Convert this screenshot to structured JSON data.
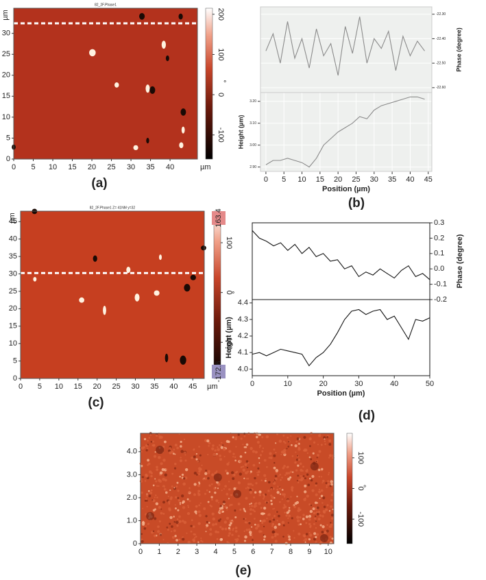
{
  "panel_labels": [
    "(a)",
    "(b)",
    "(c)",
    "(d)",
    "(e)"
  ],
  "chart_data": [
    {
      "type": "image",
      "title": "82_2F.Phase1",
      "color": "#b3321d",
      "xlim": [
        0,
        47
      ],
      "xticks": [
        0,
        5,
        10,
        15,
        20,
        25,
        30,
        35,
        40
      ],
      "ylim": [
        0,
        36
      ],
      "yticks": [
        0,
        5,
        10,
        15,
        20,
        25,
        30
      ],
      "xlabel": "µm",
      "ylabel": "µm",
      "colorbar": {
        "lim": [
          -160,
          215
        ],
        "ticks": [
          200,
          100,
          0,
          -100
        ],
        "label": "°"
      }
    },
    {
      "type": "line",
      "grid": true,
      "x": [
        0,
        2,
        4,
        6,
        8,
        10,
        12,
        14,
        16,
        18,
        20,
        22,
        24,
        26,
        28,
        30,
        32,
        34,
        36,
        38,
        40,
        42,
        44
      ],
      "series": [
        {
          "color": "#8a8a8a",
          "axis": "y2",
          "values": [
            -22.45,
            -22.38,
            -22.5,
            -22.33,
            -22.48,
            -22.4,
            -22.52,
            -22.36,
            -22.47,
            -22.42,
            -22.55,
            -22.35,
            -22.46,
            -22.31,
            -22.5,
            -22.4,
            -22.44,
            -22.37,
            -22.53,
            -22.39,
            -22.47,
            -22.41,
            -22.45
          ]
        }
      ],
      "xlim": [
        -1.5,
        46
      ],
      "y2lim": [
        -22.62,
        -22.27
      ],
      "y2ticks": [
        {
          "value": -22.3,
          "label": "-22.30"
        },
        {
          "value": -22.4,
          "label": "-22.40"
        },
        {
          "value": -22.5,
          "label": "-22.50"
        },
        {
          "value": -22.6,
          "label": "-22.60"
        }
      ],
      "y2label": "Phase (degree)"
    },
    {
      "type": "line",
      "grid": true,
      "x": [
        0,
        2,
        4,
        6,
        8,
        10,
        12,
        14,
        16,
        18,
        20,
        22,
        24,
        26,
        28,
        30,
        32,
        34,
        36,
        38,
        40,
        42,
        44
      ],
      "series": [
        {
          "color": "#8a8a8a",
          "values": [
            2.91,
            2.93,
            2.93,
            2.94,
            2.93,
            2.92,
            2.9,
            2.94,
            3.0,
            3.03,
            3.06,
            3.08,
            3.1,
            3.13,
            3.12,
            3.16,
            3.18,
            3.19,
            3.2,
            3.21,
            3.22,
            3.22,
            3.21
          ]
        }
      ],
      "xlim": [
        -1.5,
        46
      ],
      "xticks": [
        0,
        5,
        10,
        15,
        20,
        25,
        30,
        35,
        40,
        45
      ],
      "ylim": [
        2.88,
        3.24
      ],
      "yticks": [
        {
          "value": 2.9,
          "label": "2.90"
        },
        {
          "value": 3.0,
          "label": "3.00"
        },
        {
          "value": 3.1,
          "label": "3.10"
        },
        {
          "value": 3.2,
          "label": "3.20"
        }
      ],
      "xlabel": "Position (µm)",
      "ylabel": "Height (µm)"
    },
    {
      "type": "image",
      "title": "82_2F.Phase1  Z= 41NM y=32",
      "color": "#c63f20",
      "show_limits": true,
      "xlim": [
        0,
        48
      ],
      "xticks": [
        0,
        5,
        10,
        15,
        20,
        25,
        30,
        35,
        40,
        45
      ],
      "ylim": [
        0,
        48
      ],
      "yticks": [
        0,
        5,
        10,
        15,
        20,
        25,
        30,
        35,
        40,
        45
      ],
      "xlabel": "µm",
      "ylabel": "µm",
      "colorbar": {
        "lim": [
          -172.6,
          163.4
        ],
        "ticks": [
          100,
          0,
          -100
        ],
        "label": "°"
      }
    },
    {
      "type": "line",
      "grid": false,
      "x": [
        0,
        2,
        4,
        6,
        8,
        10,
        12,
        14,
        16,
        18,
        20,
        22,
        24,
        26,
        28,
        30,
        32,
        34,
        36,
        38,
        40,
        42,
        44,
        46,
        48,
        50
      ],
      "series": [
        {
          "color": "#111111",
          "axis": "y2",
          "values": [
            0.25,
            0.2,
            0.18,
            0.15,
            0.17,
            0.12,
            0.16,
            0.1,
            0.14,
            0.08,
            0.1,
            0.05,
            0.06,
            0.0,
            0.02,
            -0.05,
            -0.02,
            -0.04,
            0.0,
            -0.03,
            -0.06,
            -0.01,
            0.02,
            -0.05,
            -0.03,
            -0.07
          ]
        }
      ],
      "xlim": [
        0,
        50
      ],
      "y2lim": [
        -0.2,
        0.3
      ],
      "y2ticks": [
        0.3,
        0.2,
        0.1,
        {
          "value": 0,
          "label": "0.0"
        },
        -0.1,
        -0.2
      ],
      "y2label": "Phase (degree)"
    },
    {
      "type": "line",
      "grid": false,
      "x": [
        0,
        2,
        4,
        6,
        8,
        10,
        12,
        14,
        16,
        18,
        20,
        22,
        24,
        26,
        28,
        30,
        32,
        34,
        36,
        38,
        40,
        42,
        44,
        46,
        48,
        50
      ],
      "series": [
        {
          "color": "#111111",
          "values": [
            4.09,
            4.1,
            4.08,
            4.1,
            4.12,
            4.11,
            4.1,
            4.09,
            4.02,
            4.07,
            4.1,
            4.15,
            4.22,
            4.3,
            4.35,
            4.36,
            4.33,
            4.35,
            4.36,
            4.3,
            4.32,
            4.25,
            4.18,
            4.3,
            4.29,
            4.31
          ]
        }
      ],
      "xlim": [
        0,
        50
      ],
      "xticks": [
        0,
        10,
        20,
        30,
        40,
        50
      ],
      "ylim": [
        3.96,
        4.42
      ],
      "yticks": [
        {
          "value": 4,
          "label": "4.0"
        },
        4.1,
        4.2,
        4.3,
        4.4
      ],
      "xlabel": "Position (µm)",
      "ylabel": "Height (µm)"
    },
    {
      "type": "image",
      "color": "#c84b27",
      "texture": true,
      "xlim": [
        0,
        10.3
      ],
      "xticks": [
        0,
        1,
        2,
        3,
        4,
        5,
        6,
        7,
        8,
        9,
        10
      ],
      "ylim": [
        0,
        4.8
      ],
      "yticks": [
        0,
        {
          "value": 1,
          "label": "1.0"
        },
        {
          "value": 2,
          "label": "2.0"
        },
        {
          "value": 3,
          "label": "3.0"
        },
        {
          "value": 4,
          "label": "4.0"
        }
      ],
      "colorbar": {
        "lim": [
          -180,
          180
        ],
        "ticks": [
          100,
          0,
          -100
        ],
        "label": "°"
      }
    }
  ]
}
